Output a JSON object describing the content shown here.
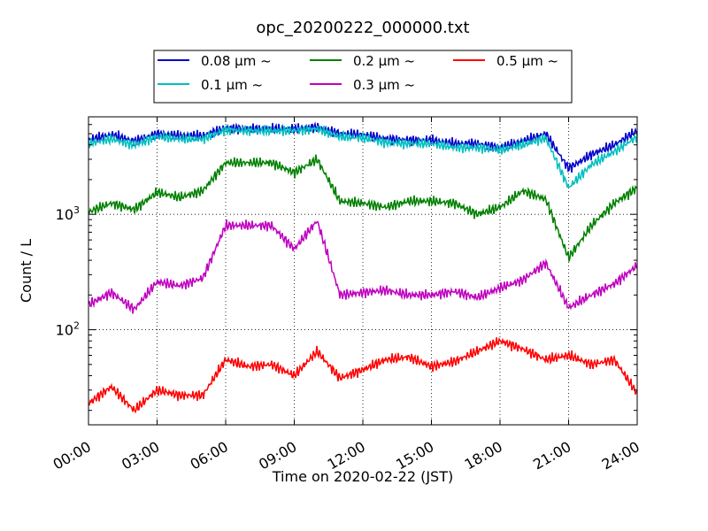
{
  "chart_data": {
    "type": "line",
    "title": "opc_20200222_000000.txt",
    "xlabel": "Time on 2020-02-22 (JST)",
    "ylabel": "Count / L",
    "yscale": "log",
    "xlim": [
      "00:00",
      "24:00"
    ],
    "ylim": [
      15,
      7000
    ],
    "x_ticks": [
      "00:00",
      "03:00",
      "06:00",
      "09:00",
      "12:00",
      "15:00",
      "18:00",
      "21:00",
      "24:00"
    ],
    "y_ticks": [
      {
        "label_base": "10",
        "label_exp": "2",
        "value": 100
      },
      {
        "label_base": "10",
        "label_exp": "3",
        "value": 1000
      }
    ],
    "grid": true,
    "legend_position": "top-center",
    "x": [
      "00:00",
      "01:00",
      "02:00",
      "03:00",
      "04:00",
      "05:00",
      "06:00",
      "07:00",
      "08:00",
      "09:00",
      "10:00",
      "11:00",
      "12:00",
      "13:00",
      "14:00",
      "15:00",
      "16:00",
      "17:00",
      "18:00",
      "19:00",
      "20:00",
      "21:00",
      "22:00",
      "23:00",
      "24:00"
    ],
    "series": [
      {
        "name": "0.08 μm ~",
        "color": "#0000cc",
        "values": [
          4400,
          4900,
          4300,
          5000,
          4800,
          4800,
          5600,
          5500,
          5500,
          5500,
          5700,
          5000,
          4900,
          4500,
          4400,
          4400,
          4100,
          4100,
          3800,
          4300,
          5000,
          2500,
          3300,
          4000,
          5300
        ]
      },
      {
        "name": "0.1 μm ~",
        "color": "#00bfbf",
        "values": [
          4100,
          4500,
          4000,
          4700,
          4500,
          4500,
          5400,
          5300,
          5300,
          5300,
          5500,
          4700,
          4600,
          4200,
          4100,
          4100,
          3800,
          3800,
          3600,
          4000,
          4600,
          1700,
          2700,
          3500,
          4700
        ]
      },
      {
        "name": "0.2 μm ~",
        "color": "#008000",
        "values": [
          1050,
          1250,
          1100,
          1550,
          1400,
          1600,
          2800,
          2800,
          2800,
          2300,
          3000,
          1300,
          1250,
          1150,
          1300,
          1300,
          1250,
          1000,
          1150,
          1600,
          1350,
          420,
          800,
          1250,
          1700
        ]
      },
      {
        "name": "0.3 μm ~",
        "color": "#bf00bf",
        "values": [
          165,
          210,
          150,
          260,
          240,
          280,
          800,
          800,
          800,
          500,
          880,
          200,
          210,
          220,
          200,
          200,
          215,
          190,
          230,
          270,
          380,
          155,
          200,
          250,
          360
        ]
      },
      {
        "name": "0.5 μm ~",
        "color": "#ff0000",
        "values": [
          23,
          32,
          20,
          30,
          27,
          27,
          55,
          48,
          50,
          40,
          65,
          38,
          45,
          55,
          58,
          48,
          53,
          65,
          80,
          68,
          55,
          60,
          50,
          55,
          28
        ]
      }
    ]
  }
}
